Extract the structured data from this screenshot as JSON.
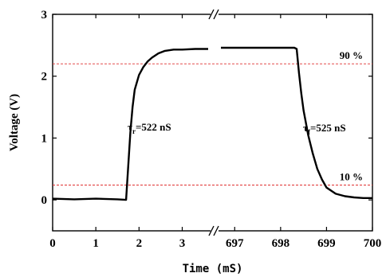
{
  "chart_data": {
    "type": "line",
    "xlabel": "Time (mS)",
    "ylabel": "Voltage (V)",
    "ylim": [
      -0.5,
      3
    ],
    "y_ticks": [
      "0",
      "1",
      "2",
      "3"
    ],
    "x_segments": [
      {
        "xlim": [
          0,
          3.6
        ],
        "ticks": [
          "0",
          "1",
          "2",
          "3"
        ]
      },
      {
        "xlim": [
          696.7,
          700
        ],
        "ticks": [
          "697",
          "698",
          "699",
          "700"
        ]
      }
    ],
    "axis_break": "between 3.6 and 696.7 (double slash marks)",
    "grid": false,
    "reference_lines": [
      {
        "label": "90 %",
        "y": 2.2,
        "style": "dashed",
        "color": "#e03030"
      },
      {
        "label": "10 %",
        "y": 0.24,
        "style": "dashed",
        "color": "#e03030"
      }
    ],
    "annotations": {
      "rise_symbol": "τ",
      "rise_sub": "r",
      "rise_value": "=522 nS",
      "fall_symbol": "τ",
      "fall_sub": "f",
      "fall_value": "=525 nS"
    },
    "series": [
      {
        "color": "#000000",
        "segment1": {
          "x": [
            0,
            0.5,
            1.0,
            1.5,
            1.7,
            1.75,
            1.8,
            1.85,
            1.9,
            2.0,
            2.1,
            2.2,
            2.3,
            2.45,
            2.6,
            2.8,
            3.0,
            3.3,
            3.6
          ],
          "y": [
            0.02,
            0.01,
            0.02,
            0.01,
            0.0,
            0.55,
            1.1,
            1.5,
            1.78,
            2.02,
            2.15,
            2.24,
            2.3,
            2.37,
            2.41,
            2.43,
            2.43,
            2.44,
            2.44
          ]
        },
        "segment2": {
          "x": [
            696.7,
            697.2,
            697.6,
            698.0,
            698.3,
            698.35,
            698.4,
            698.45,
            698.5,
            698.6,
            698.7,
            698.8,
            698.9,
            699.0,
            699.2,
            699.4,
            699.6,
            699.8,
            700.0
          ],
          "y": [
            2.46,
            2.46,
            2.46,
            2.46,
            2.46,
            2.44,
            2.05,
            1.72,
            1.45,
            1.05,
            0.75,
            0.5,
            0.33,
            0.2,
            0.1,
            0.06,
            0.04,
            0.03,
            0.03
          ]
        }
      }
    ],
    "colors": {
      "axis": "#000000",
      "trace": "#000000",
      "reference": "#e03030"
    }
  }
}
